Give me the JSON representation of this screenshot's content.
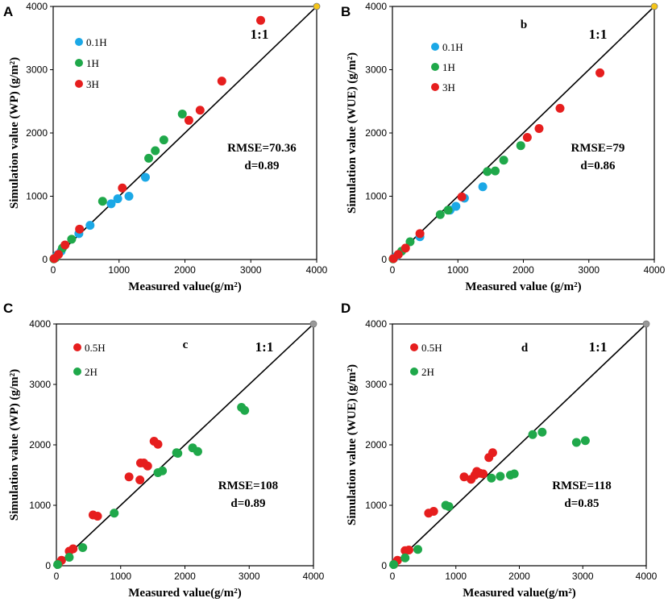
{
  "chart_data": [
    {
      "panel": "A",
      "type": "scatter",
      "ylabel": "Simulation value (WP)  (g/m²)",
      "xlabel": "Measured  value(g/m²)",
      "xlim": [
        0,
        4000
      ],
      "ylim": [
        0,
        4000
      ],
      "xticks": [
        "0",
        "1000",
        "2000",
        "3000",
        "4000"
      ],
      "yticks": [
        "0",
        "1000",
        "2000",
        "3000",
        "4000"
      ],
      "ratio_label": "1:1",
      "stats": [
        "RMSE=70.36",
        "d=0.89"
      ],
      "series": [
        {
          "name": "0.1H",
          "color": "#1BA8E6",
          "points": [
            [
              20,
              20
            ],
            [
              60,
              70
            ],
            [
              120,
              130
            ],
            [
              390,
              410
            ],
            [
              560,
              540
            ],
            [
              880,
              880
            ],
            [
              980,
              960
            ],
            [
              1150,
              1000
            ],
            [
              1400,
              1300
            ]
          ]
        },
        {
          "name": "1H",
          "color": "#1FA84A",
          "points": [
            [
              10,
              10
            ],
            [
              40,
              30
            ],
            [
              140,
              180
            ],
            [
              280,
              320
            ],
            [
              750,
              920
            ],
            [
              1450,
              1600
            ],
            [
              1550,
              1720
            ],
            [
              1680,
              1890
            ],
            [
              1960,
              2300
            ]
          ]
        },
        {
          "name": "3H",
          "color": "#E61E1E",
          "points": [
            [
              15,
              15
            ],
            [
              80,
              80
            ],
            [
              180,
              230
            ],
            [
              400,
              480
            ],
            [
              1050,
              1130
            ],
            [
              2060,
              2200
            ],
            [
              2230,
              2360
            ],
            [
              2560,
              2820
            ],
            [
              3150,
              3780
            ]
          ]
        }
      ]
    },
    {
      "panel": "B",
      "type": "scatter",
      "letter": "b",
      "ylabel": "Simulation value (WUE)  (g/m²)",
      "xlabel": "Measured  value (g/m²)",
      "xlim": [
        0,
        4000
      ],
      "ylim": [
        0,
        4000
      ],
      "xticks": [
        "0",
        "1000",
        "2000",
        "3000",
        "4000"
      ],
      "yticks": [
        "0",
        "1000",
        "2000",
        "3000",
        "4000"
      ],
      "ratio_label": "1:1",
      "stats": [
        "RMSE=79",
        "d=0.86"
      ],
      "series": [
        {
          "name": "0.1H",
          "color": "#1BA8E6",
          "points": [
            [
              20,
              20
            ],
            [
              70,
              60
            ],
            [
              420,
              360
            ],
            [
              880,
              780
            ],
            [
              970,
              840
            ],
            [
              1100,
              970
            ],
            [
              1380,
              1150
            ]
          ]
        },
        {
          "name": "1H",
          "color": "#1FA84A",
          "points": [
            [
              10,
              10
            ],
            [
              140,
              130
            ],
            [
              270,
              280
            ],
            [
              730,
              710
            ],
            [
              850,
              780
            ],
            [
              1450,
              1390
            ],
            [
              1570,
              1400
            ],
            [
              1700,
              1570
            ],
            [
              1960,
              1800
            ]
          ]
        },
        {
          "name": "3H",
          "color": "#E61E1E",
          "points": [
            [
              15,
              15
            ],
            [
              90,
              80
            ],
            [
              200,
              180
            ],
            [
              420,
              410
            ],
            [
              1060,
              990
            ],
            [
              2060,
              1930
            ],
            [
              2240,
              2070
            ],
            [
              2560,
              2390
            ],
            [
              3170,
              2950
            ]
          ]
        }
      ]
    },
    {
      "panel": "C",
      "type": "scatter",
      "letter": "c",
      "ylabel": "Simulation value (WP)  (g/m²)",
      "xlabel": "Measured value(g/m²)",
      "xlim": [
        0,
        4000
      ],
      "ylim": [
        0,
        4000
      ],
      "xticks": [
        "0",
        "1000",
        "2000",
        "3000",
        "4000"
      ],
      "yticks": [
        "0",
        "1000",
        "2000",
        "3000",
        "4000"
      ],
      "ratio_label": "1:1",
      "stats": [
        "RMSE=108",
        "d=0.89"
      ],
      "series": [
        {
          "name": "0.5H",
          "color": "#E61E1E",
          "points": [
            [
              30,
              30
            ],
            [
              80,
              90
            ],
            [
              200,
              240
            ],
            [
              260,
              280
            ],
            [
              570,
              840
            ],
            [
              640,
              820
            ],
            [
              1130,
              1470
            ],
            [
              1300,
              1420
            ],
            [
              1310,
              1700
            ],
            [
              1360,
              1700
            ],
            [
              1420,
              1650
            ],
            [
              1520,
              2060
            ],
            [
              1580,
              2010
            ]
          ]
        },
        {
          "name": "2H",
          "color": "#1FA84A",
          "points": [
            [
              20,
              20
            ],
            [
              200,
              140
            ],
            [
              410,
              300
            ],
            [
              900,
              870
            ],
            [
              1580,
              1540
            ],
            [
              1650,
              1570
            ],
            [
              1870,
              1870
            ],
            [
              1890,
              1860
            ],
            [
              2120,
              1950
            ],
            [
              2200,
              1890
            ],
            [
              2880,
              2620
            ],
            [
              2930,
              2570
            ]
          ]
        }
      ]
    },
    {
      "panel": "D",
      "type": "scatter",
      "letter": "d",
      "ylabel": "Simulation value (WUE)  (g/m²)",
      "xlabel": "Measured value(g/m²)",
      "xlim": [
        0,
        4000
      ],
      "ylim": [
        0,
        4000
      ],
      "xticks": [
        "0",
        "1000",
        "2000",
        "3000",
        "4000"
      ],
      "yticks": [
        "0",
        "1000",
        "2000",
        "3000",
        "4000"
      ],
      "ratio_label": "1:1",
      "stats": [
        "RMSE=118",
        "d=0.85"
      ],
      "series": [
        {
          "name": "0.5H",
          "color": "#E61E1E",
          "points": [
            [
              30,
              30
            ],
            [
              80,
              90
            ],
            [
              200,
              250
            ],
            [
              260,
              260
            ],
            [
              570,
              870
            ],
            [
              650,
              900
            ],
            [
              1130,
              1470
            ],
            [
              1240,
              1430
            ],
            [
              1300,
              1500
            ],
            [
              1330,
              1560
            ],
            [
              1380,
              1530
            ],
            [
              1430,
              1520
            ],
            [
              1520,
              1790
            ],
            [
              1580,
              1870
            ]
          ]
        },
        {
          "name": "2H",
          "color": "#1FA84A",
          "points": [
            [
              20,
              20
            ],
            [
              200,
              130
            ],
            [
              400,
              270
            ],
            [
              840,
              1000
            ],
            [
              890,
              980
            ],
            [
              1560,
              1450
            ],
            [
              1700,
              1480
            ],
            [
              1860,
              1500
            ],
            [
              1920,
              1520
            ],
            [
              2210,
              2170
            ],
            [
              2360,
              2210
            ],
            [
              2900,
              2040
            ],
            [
              3040,
              2070
            ]
          ]
        }
      ]
    }
  ]
}
